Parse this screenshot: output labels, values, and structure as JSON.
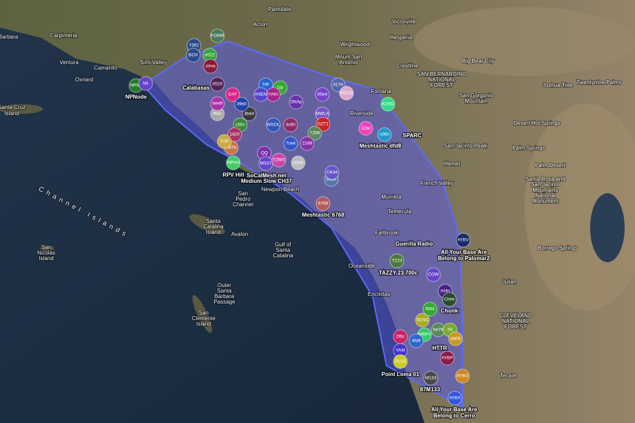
{
  "map": {
    "places": [
      "Palmdale",
      "Acton",
      "Victorville",
      "Hesperia",
      "Wrightwood",
      "Carpinteria",
      "Barbara",
      "Ventura",
      "Camarillo",
      "Simi Valley",
      "Oxnard",
      "Calabasas",
      "Santa Cruz",
      "Island",
      "Mount San",
      "Antonio",
      "Crestline",
      "Big Bear City",
      "SAN BERNARDINO",
      "NATIONAL",
      "FOREST",
      "Fontana",
      "San Gorgonio",
      "Mountain",
      "Joshua Tree",
      "Twentynine Palms",
      "Riverside",
      "Desert Hot Springs",
      "San Jacinto Peak",
      "Palm Springs",
      "Hemet",
      "Palm Desert",
      "Santa Rosa and",
      "San Jacinto",
      "Mountains",
      "National",
      "Monument",
      "French Valley",
      "Newport Beach",
      "Murrieta",
      "Channel Islands",
      "San",
      "Pedro",
      "Channel",
      "Santa",
      "Catalina",
      "Island",
      "Avalon",
      "Temecula",
      "Fallbrook",
      "Gulf of",
      "Santa",
      "Catalina",
      "San",
      "Nicolas",
      "Island",
      "Borrego Springs",
      "Oceanside",
      "Outer",
      "Santa",
      "Barbara",
      "Passage",
      "Julian",
      "Encinitas",
      "San",
      "Clemente",
      "Island",
      "CLEVELAND",
      "NATIONAL",
      "FOREST",
      "Tecate"
    ],
    "captions": [
      "NPNode",
      "Calabasas",
      "SPARC",
      "Meshtastic dfd8",
      "RPV Hill",
      "SoCalMesh.net",
      "Medium Slow CH37",
      "Meshtastic 6768",
      "Guerilla Radio",
      "All Your Base Are",
      "Belong to Palomar2",
      "TAZZY 23 700c",
      "Chonk",
      "HTTR",
      "Point Loma 01",
      "87M133",
      "All Your Base Are",
      "Belong to Cerro"
    ],
    "nodes": [
      {
        "label": "7392",
        "color": "#2a4a8a"
      },
      {
        "label": "BOX",
        "color": "#2a4a8a"
      },
      {
        "label": "e022",
        "color": "#3aa13a"
      },
      {
        "label": "FORM",
        "color": "#4a7a5a"
      },
      {
        "label": "zima",
        "color": "#8b1a3a"
      },
      {
        "label": "TifF",
        "color": "#2266cc"
      },
      {
        "label": "Up",
        "color": "#33aa33"
      },
      {
        "label": "GAT",
        "color": "#dd2288"
      },
      {
        "label": "05e4",
        "color": "#7744cc"
      },
      {
        "label": "ALTA",
        "color": "#5566aa"
      },
      {
        "label": "RCUC",
        "color": "#ddaacc"
      },
      {
        "label": "K1ND",
        "color": "#33dd88"
      },
      {
        "label": "DNAp",
        "color": "#6633aa"
      },
      {
        "label": "MWLA",
        "color": "#7755cc"
      },
      {
        "label": "3c90",
        "color": "#8b2a6a"
      },
      {
        "label": "GZT1",
        "color": "#cc2222"
      },
      {
        "label": "7256",
        "color": "#5a8a5a"
      },
      {
        "label": "12ac",
        "color": "#ee44bb"
      },
      {
        "label": "c960",
        "color": "#2299cc"
      },
      {
        "label": "2249",
        "color": "#8833aa"
      },
      {
        "label": "7ce4",
        "color": "#3355cc"
      },
      {
        "label": "d2d4",
        "color": "#bbbbbb"
      },
      {
        "label": "QQ",
        "color": "#7733aa"
      },
      {
        "label": "MS37",
        "color": "#6644cc"
      },
      {
        "label": "TZMS",
        "color": "#cc44aa"
      },
      {
        "label": "RPVH",
        "color": "#44cc66"
      },
      {
        "label": "c55c",
        "color": "#3a8a3a"
      },
      {
        "label": "1820",
        "color": "#aa3366"
      },
      {
        "label": "847e",
        "color": "#cc7744"
      },
      {
        "label": "TOP",
        "color": "#ccaa44"
      },
      {
        "label": "96a0",
        "color": "#5577aa"
      },
      {
        "label": "CK44",
        "color": "#6655cc"
      },
      {
        "label": "6768",
        "color": "#b35a5a"
      },
      {
        "label": "AYBV",
        "color": "#1a2a6a"
      },
      {
        "label": "TZ23",
        "color": "#4a7a3a"
      },
      {
        "label": "COW",
        "color": "#6644cc"
      },
      {
        "label": "AHH",
        "color": "#4a2288"
      },
      {
        "label": "Chnk",
        "color": "#2a4a2a"
      },
      {
        "label": "f044",
        "color": "#33aa33"
      },
      {
        "label": "SENC",
        "color": "#aaaa22"
      },
      {
        "label": "be76",
        "color": "#5a8a5a"
      },
      {
        "label": "54",
        "color": "#77aa33"
      },
      {
        "label": "da09",
        "color": "#cc9922"
      },
      {
        "label": "2f6c",
        "color": "#cc2266"
      },
      {
        "label": "WRPY",
        "color": "#33cc66"
      },
      {
        "label": "4fa9",
        "color": "#3366cc"
      },
      {
        "label": "AYBP",
        "color": "#8b1a4a"
      },
      {
        "label": "YAM",
        "color": "#4433cc"
      },
      {
        "label": "PL01",
        "color": "#cccc22"
      },
      {
        "label": "M133",
        "color": "#4a4a4a"
      },
      {
        "label": "AYBO",
        "color": "#cc8822"
      },
      {
        "label": "AYBX",
        "color": "#3355dd"
      },
      {
        "label": "3b44",
        "color": "#3a3a3a"
      },
      {
        "label": "f6dc",
        "color": "#aaaaaa"
      },
      {
        "label": "bee9",
        "color": "#aa33aa"
      },
      {
        "label": "39b0",
        "color": "#2244aa"
      },
      {
        "label": "NPNo",
        "color": "#2a7a2a"
      },
      {
        "label": "b4",
        "color": "#6644cc"
      },
      {
        "label": "WSOL",
        "color": "#3355bb"
      },
      {
        "label": "0520",
        "color": "#552255"
      },
      {
        "label": "YAKI",
        "color": "#aa2288"
      },
      {
        "label": "ANEM",
        "color": "#5544cc"
      }
    ]
  }
}
